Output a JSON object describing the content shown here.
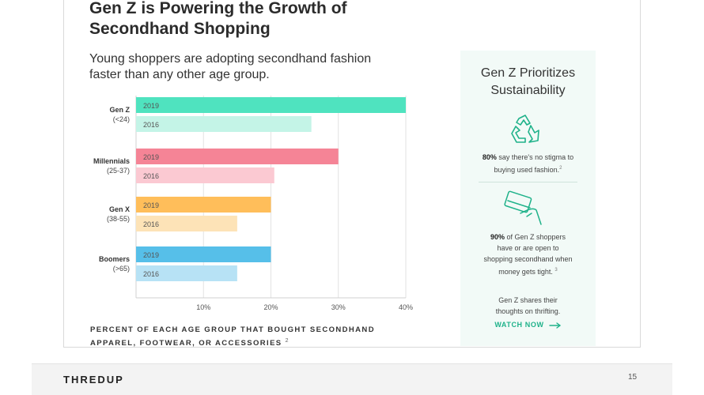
{
  "slide": {
    "title": "Gen Z is Powering the Growth of Secondhand Shopping",
    "subtitle": "Young shoppers are adopting secondhand fashion faster than any other age group.",
    "caption": "PERCENT OF EACH AGE GROUP THAT BOUGHT SECONDHAND APPAREL, FOOTWEAR, OR ACCESSORIES",
    "caption_ref": "2",
    "logo": "THREDUP",
    "page_number": "15"
  },
  "panel": {
    "title": "Gen Z Prioritizes Sustainability",
    "stat1_bold": "80%",
    "stat1_text": " say there's no stigma to buying used fashion.",
    "stat1_ref": "2",
    "stat2_bold": "90%",
    "stat2_text": " of Gen Z shoppers have or are open to shopping secondhand when money gets tight.",
    "stat2_ref": "3",
    "stat3_text": "Gen Z shares their thoughts on thrifting.",
    "watch_label": "WATCH NOW",
    "icons": [
      "recycle-icon",
      "hand-card-icon",
      "arrow-right-icon"
    ],
    "accent_color": "#1fb28a"
  },
  "chart_data": {
    "type": "bar",
    "orientation": "horizontal",
    "groups": [
      {
        "name": "Gen Z",
        "sub": "(<24)",
        "bars": [
          {
            "year": "2019",
            "value": 40,
            "color": "#4fe3bf"
          },
          {
            "year": "2016",
            "value": 26,
            "color": "#c4f4e7"
          }
        ]
      },
      {
        "name": "Millennials",
        "sub": "(25-37)",
        "bars": [
          {
            "year": "2019",
            "value": 30,
            "color": "#f58496"
          },
          {
            "year": "2016",
            "value": 20.5,
            "color": "#fbc9d2"
          }
        ]
      },
      {
        "name": "Gen X",
        "sub": "(38-55)",
        "bars": [
          {
            "year": "2019",
            "value": 20,
            "color": "#ffbe5a"
          },
          {
            "year": "2016",
            "value": 15,
            "color": "#fde3b7"
          }
        ]
      },
      {
        "name": "Boomers",
        "sub": "(>65)",
        "bars": [
          {
            "year": "2019",
            "value": 20,
            "color": "#56bfe9"
          },
          {
            "year": "2016",
            "value": 15,
            "color": "#b7e2f5"
          }
        ]
      }
    ],
    "xticks": [
      "10%",
      "20%",
      "30%",
      "40%"
    ],
    "xtick_values": [
      10,
      20,
      30,
      40
    ],
    "xlim": [
      0,
      40
    ],
    "grid": true
  }
}
